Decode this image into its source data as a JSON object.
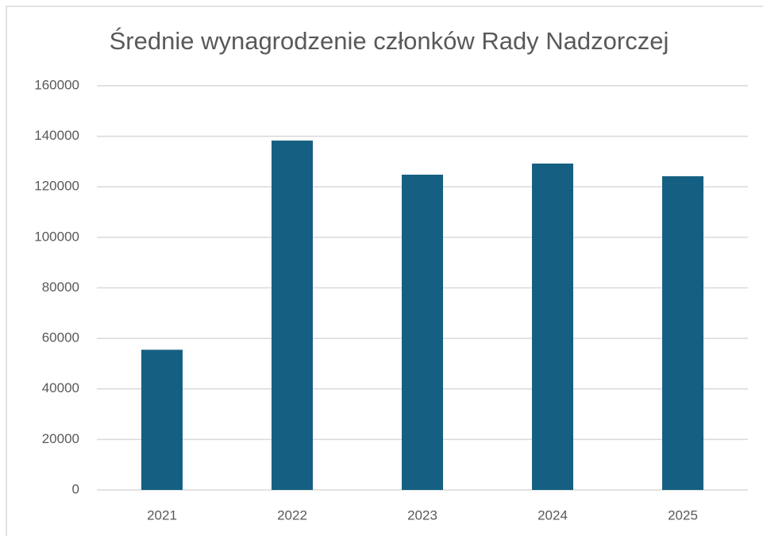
{
  "chart_data": {
    "type": "bar",
    "title": "Średnie wynagrodzenie członków Rady Nadzorczej",
    "categories": [
      "2021",
      "2022",
      "2023",
      "2024",
      "2025"
    ],
    "values": [
      55500,
      138300,
      124800,
      129200,
      124200
    ],
    "color": "#156082",
    "ylim": [
      0,
      160000
    ],
    "yticks": [
      0,
      20000,
      40000,
      60000,
      80000,
      100000,
      120000,
      140000,
      160000
    ],
    "grid": true
  }
}
